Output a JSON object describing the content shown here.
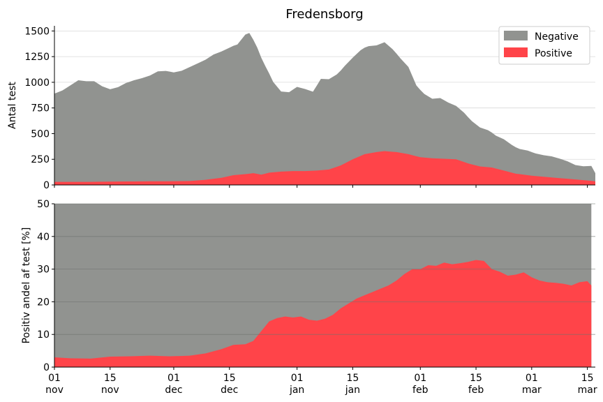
{
  "colors": {
    "negative": "#919390",
    "positive": "#ff4449",
    "axis": "#000000",
    "grid": "#d9d9d9",
    "grid_dark": "#6e706d"
  },
  "chart_data": [
    {
      "type": "area",
      "title": "Fredensborg",
      "xlabel": "",
      "ylabel": "Antal test",
      "ylim": [
        0,
        1550
      ],
      "yticks": [
        0,
        250,
        500,
        750,
        1000,
        1250,
        1500
      ],
      "xlim": [
        "2020-11-01",
        "2021-03-17"
      ],
      "stacked": true,
      "grid": "horizontal",
      "legend": {
        "position": "top-right",
        "entries": [
          "Negative",
          "Positive"
        ]
      },
      "series": [
        {
          "name": "Positive",
          "points": [
            [
              "2020-11-01",
              30
            ],
            [
              "2020-11-05",
              30
            ],
            [
              "2020-11-10",
              30
            ],
            [
              "2020-11-15",
              32
            ],
            [
              "2020-11-20",
              34
            ],
            [
              "2020-11-25",
              36
            ],
            [
              "2020-11-30",
              36
            ],
            [
              "2020-12-05",
              38
            ],
            [
              "2020-12-09",
              50
            ],
            [
              "2020-12-13",
              70
            ],
            [
              "2020-12-16",
              95
            ],
            [
              "2020-12-19",
              105
            ],
            [
              "2020-12-21",
              115
            ],
            [
              "2020-12-23",
              100
            ],
            [
              "2020-12-25",
              120
            ],
            [
              "2020-12-28",
              130
            ],
            [
              "2020-12-31",
              135
            ],
            [
              "2021-01-03",
              135
            ],
            [
              "2021-01-06",
              140
            ],
            [
              "2021-01-09",
              150
            ],
            [
              "2021-01-12",
              190
            ],
            [
              "2021-01-15",
              250
            ],
            [
              "2021-01-18",
              300
            ],
            [
              "2021-01-21",
              320
            ],
            [
              "2021-01-23",
              330
            ],
            [
              "2021-01-26",
              320
            ],
            [
              "2021-01-29",
              300
            ],
            [
              "2021-02-01",
              270
            ],
            [
              "2021-02-04",
              260
            ],
            [
              "2021-02-07",
              255
            ],
            [
              "2021-02-10",
              250
            ],
            [
              "2021-02-13",
              210
            ],
            [
              "2021-02-16",
              180
            ],
            [
              "2021-02-19",
              170
            ],
            [
              "2021-02-22",
              140
            ],
            [
              "2021-02-25",
              110
            ],
            [
              "2021-03-01",
              90
            ],
            [
              "2021-03-04",
              80
            ],
            [
              "2021-03-07",
              70
            ],
            [
              "2021-03-10",
              60
            ],
            [
              "2021-03-13",
              50
            ],
            [
              "2021-03-16",
              40
            ],
            [
              "2021-03-17",
              35
            ]
          ]
        },
        {
          "name": "Negative",
          "points": [
            [
              "2020-11-01",
              860
            ],
            [
              "2020-11-03",
              890
            ],
            [
              "2020-11-05",
              940
            ],
            [
              "2020-11-07",
              990
            ],
            [
              "2020-11-09",
              980
            ],
            [
              "2020-11-11",
              980
            ],
            [
              "2020-11-13",
              930
            ],
            [
              "2020-11-15",
              900
            ],
            [
              "2020-11-17",
              920
            ],
            [
              "2020-11-19",
              960
            ],
            [
              "2020-11-21",
              985
            ],
            [
              "2020-11-23",
              1005
            ],
            [
              "2020-11-25",
              1030
            ],
            [
              "2020-11-27",
              1070
            ],
            [
              "2020-11-29",
              1075
            ],
            [
              "2020-12-01",
              1060
            ],
            [
              "2020-12-03",
              1075
            ],
            [
              "2020-12-05",
              1110
            ],
            [
              "2020-12-07",
              1140
            ],
            [
              "2020-12-09",
              1170
            ],
            [
              "2020-12-11",
              1210
            ],
            [
              "2020-12-13",
              1230
            ],
            [
              "2020-12-15",
              1250
            ],
            [
              "2020-12-17",
              1270
            ],
            [
              "2020-12-19",
              1360
            ],
            [
              "2020-12-20",
              1370
            ],
            [
              "2020-12-22",
              1230
            ],
            [
              "2020-12-24",
              1050
            ],
            [
              "2020-12-26",
              880
            ],
            [
              "2020-12-28",
              780
            ],
            [
              "2020-12-30",
              770
            ],
            [
              "2021-01-01",
              820
            ],
            [
              "2021-01-03",
              800
            ],
            [
              "2021-01-05",
              770
            ],
            [
              "2021-01-07",
              890
            ],
            [
              "2021-01-09",
              880
            ],
            [
              "2021-01-11",
              900
            ],
            [
              "2021-01-13",
              950
            ],
            [
              "2021-01-15",
              990
            ],
            [
              "2021-01-17",
              1030
            ],
            [
              "2021-01-19",
              1045
            ],
            [
              "2021-01-21",
              1040
            ],
            [
              "2021-01-23",
              1060
            ],
            [
              "2021-01-25",
              1000
            ],
            [
              "2021-01-27",
              920
            ],
            [
              "2021-01-29",
              850
            ],
            [
              "2021-01-31",
              690
            ],
            [
              "2021-02-02",
              620
            ],
            [
              "2021-02-04",
              580
            ],
            [
              "2021-02-06",
              590
            ],
            [
              "2021-02-08",
              550
            ],
            [
              "2021-02-10",
              520
            ],
            [
              "2021-02-12",
              480
            ],
            [
              "2021-02-14",
              420
            ],
            [
              "2021-02-16",
              380
            ],
            [
              "2021-02-18",
              360
            ],
            [
              "2021-02-20",
              320
            ],
            [
              "2021-02-22",
              305
            ],
            [
              "2021-02-24",
              270
            ],
            [
              "2021-02-26",
              245
            ],
            [
              "2021-02-28",
              240
            ],
            [
              "2021-03-02",
              220
            ],
            [
              "2021-03-04",
              210
            ],
            [
              "2021-03-06",
              205
            ],
            [
              "2021-03-08",
              190
            ],
            [
              "2021-03-10",
              170
            ],
            [
              "2021-03-12",
              140
            ],
            [
              "2021-03-14",
              135
            ],
            [
              "2021-03-16",
              145
            ],
            [
              "2021-03-17",
              80
            ]
          ]
        }
      ]
    },
    {
      "type": "area",
      "title": "",
      "xlabel": "",
      "ylabel": "Positiv andel af test [%]",
      "ylim": [
        0,
        50
      ],
      "yticks": [
        0,
        10,
        20,
        30,
        40,
        50
      ],
      "xlim": [
        "2020-11-01",
        "2021-03-17"
      ],
      "grid": "horizontal",
      "series": [
        {
          "name": "Positive",
          "points": [
            [
              "2020-11-01",
              3
            ],
            [
              "2020-11-05",
              2.7
            ],
            [
              "2020-11-10",
              2.6
            ],
            [
              "2020-11-15",
              3.2
            ],
            [
              "2020-11-20",
              3.3
            ],
            [
              "2020-11-25",
              3.5
            ],
            [
              "2020-11-30",
              3.3
            ],
            [
              "2020-12-05",
              3.5
            ],
            [
              "2020-12-09",
              4.2
            ],
            [
              "2020-12-13",
              5.5
            ],
            [
              "2020-12-16",
              6.8
            ],
            [
              "2020-12-19",
              7
            ],
            [
              "2020-12-21",
              8
            ],
            [
              "2020-12-23",
              11
            ],
            [
              "2020-12-25",
              14
            ],
            [
              "2020-12-27",
              15
            ],
            [
              "2020-12-29",
              15.5
            ],
            [
              "2020-12-31",
              15.2
            ],
            [
              "2021-01-02",
              15.5
            ],
            [
              "2021-01-04",
              14.5
            ],
            [
              "2021-01-06",
              14.2
            ],
            [
              "2021-01-08",
              14.8
            ],
            [
              "2021-01-10",
              16
            ],
            [
              "2021-01-12",
              18
            ],
            [
              "2021-01-14",
              19.5
            ],
            [
              "2021-01-16",
              21
            ],
            [
              "2021-01-18",
              22
            ],
            [
              "2021-01-20",
              23
            ],
            [
              "2021-01-22",
              24
            ],
            [
              "2021-01-24",
              25
            ],
            [
              "2021-01-26",
              26.5
            ],
            [
              "2021-01-28",
              28.5
            ],
            [
              "2021-01-30",
              30
            ],
            [
              "2021-02-01",
              30
            ],
            [
              "2021-02-03",
              31.2
            ],
            [
              "2021-02-05",
              31
            ],
            [
              "2021-02-07",
              32
            ],
            [
              "2021-02-09",
              31.5
            ],
            [
              "2021-02-11",
              31.8
            ],
            [
              "2021-02-13",
              32.2
            ],
            [
              "2021-02-15",
              32.8
            ],
            [
              "2021-02-17",
              32.5
            ],
            [
              "2021-02-19",
              30
            ],
            [
              "2021-02-21",
              29.2
            ],
            [
              "2021-02-23",
              28
            ],
            [
              "2021-02-25",
              28.3
            ],
            [
              "2021-02-27",
              29
            ],
            [
              "2021-03-01",
              27.5
            ],
            [
              "2021-03-03",
              26.5
            ],
            [
              "2021-03-05",
              26
            ],
            [
              "2021-03-07",
              25.8
            ],
            [
              "2021-03-09",
              25.5
            ],
            [
              "2021-03-11",
              25
            ],
            [
              "2021-03-13",
              26
            ],
            [
              "2021-03-15",
              26.3
            ],
            [
              "2021-03-16",
              25
            ]
          ]
        }
      ],
      "negative_fill_end": "2021-03-16"
    }
  ],
  "x_ticks": [
    {
      "date": "2020-11-01",
      "day": "01",
      "month": "nov"
    },
    {
      "date": "2020-11-15",
      "day": "15",
      "month": "nov"
    },
    {
      "date": "2020-12-01",
      "day": "01",
      "month": "dec"
    },
    {
      "date": "2020-12-15",
      "day": "15",
      "month": "dec"
    },
    {
      "date": "2021-01-01",
      "day": "01",
      "month": "jan"
    },
    {
      "date": "2021-01-15",
      "day": "15",
      "month": "jan"
    },
    {
      "date": "2021-02-01",
      "day": "01",
      "month": "feb"
    },
    {
      "date": "2021-02-15",
      "day": "15",
      "month": "feb"
    },
    {
      "date": "2021-03-01",
      "day": "01",
      "month": "mar"
    },
    {
      "date": "2021-03-15",
      "day": "15",
      "month": "mar"
    }
  ]
}
